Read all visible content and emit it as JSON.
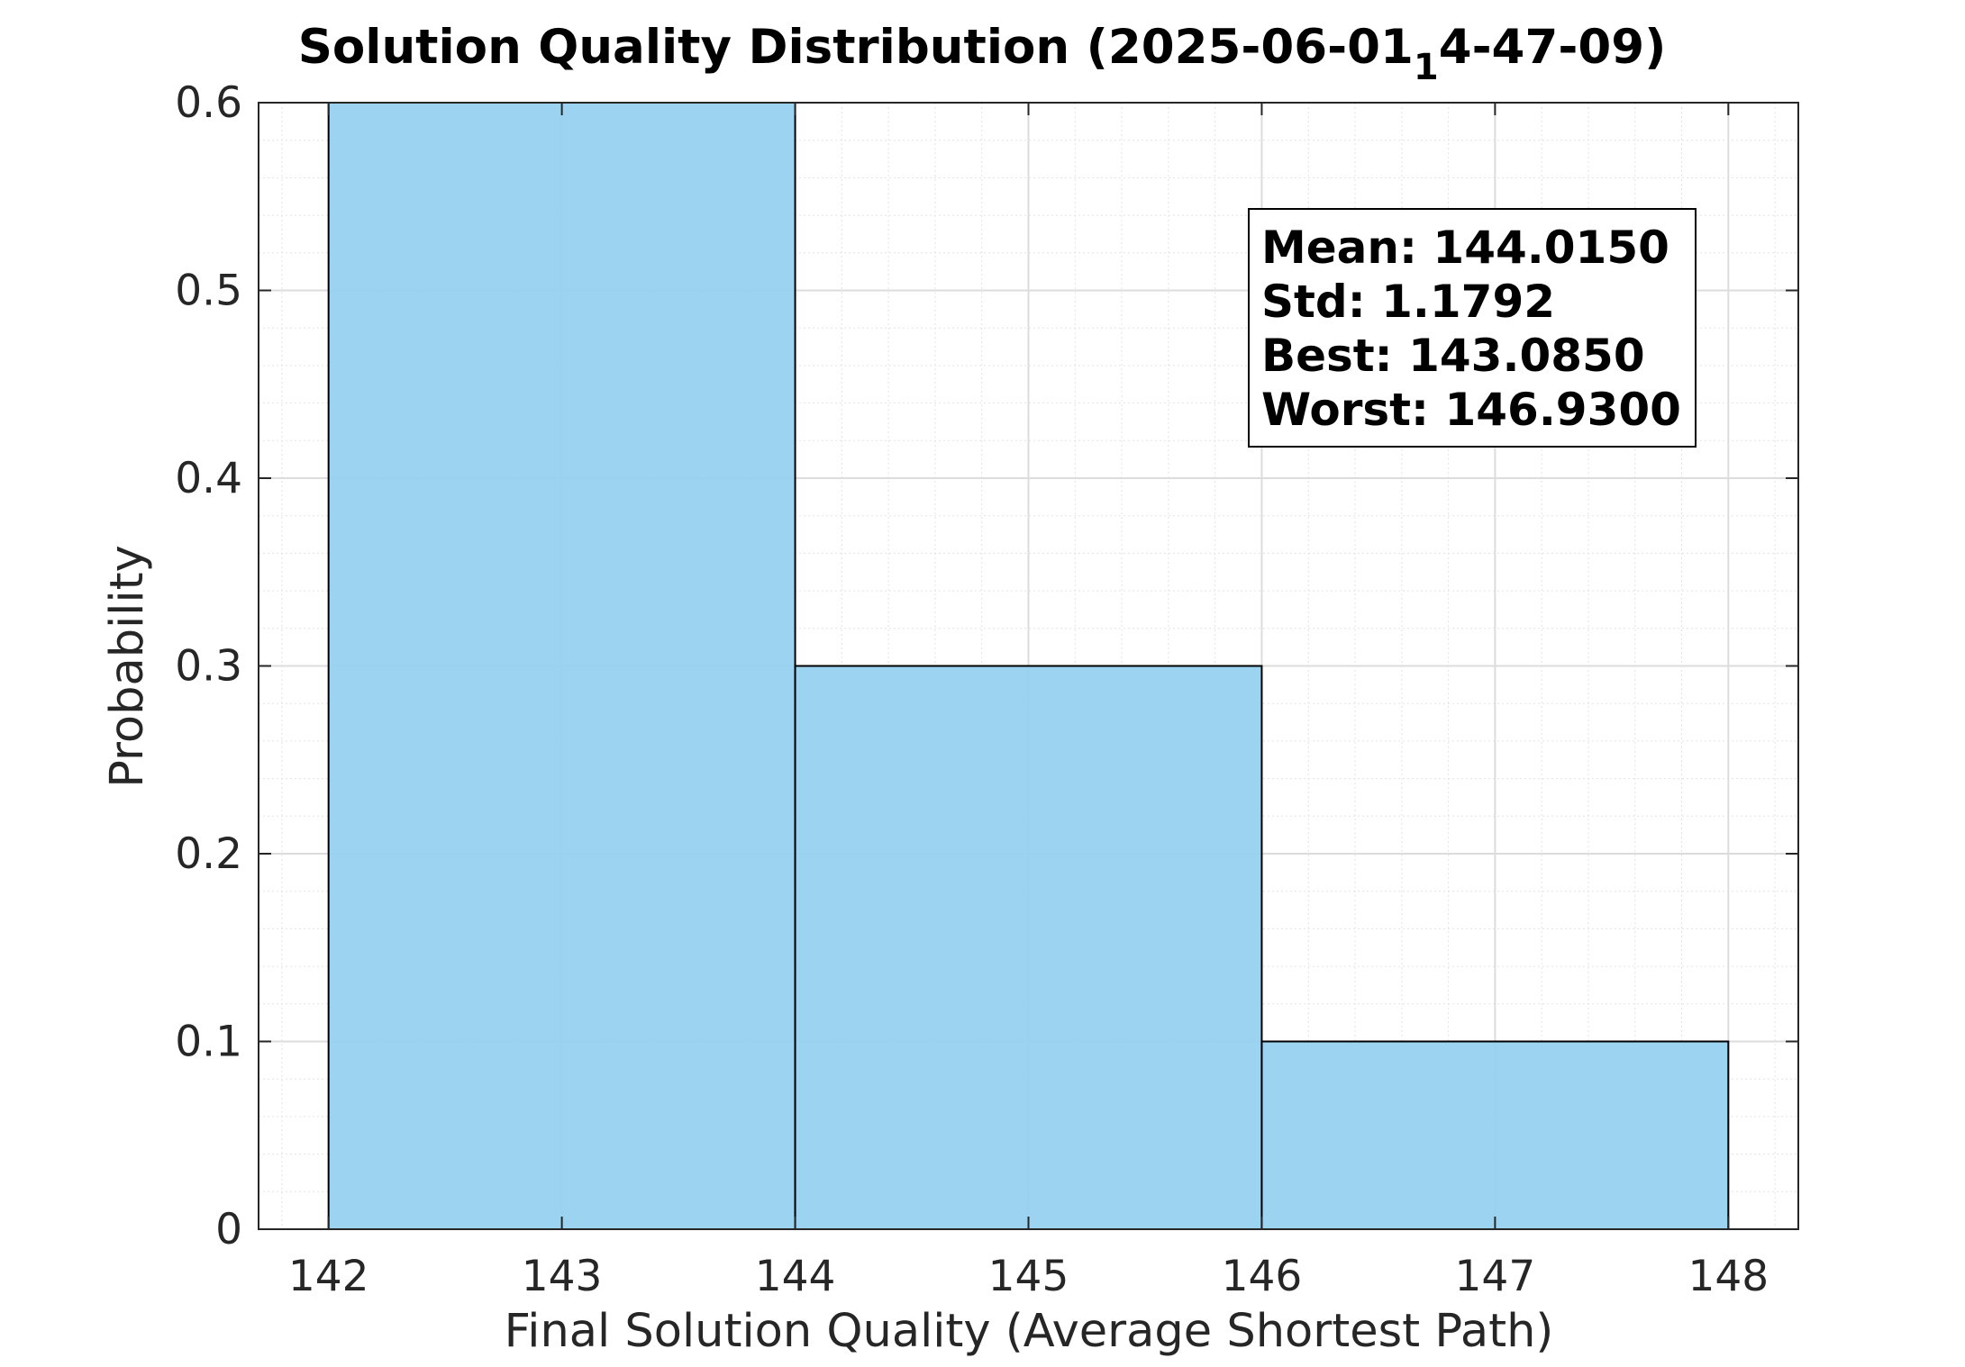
{
  "chart_data": {
    "type": "bar",
    "subtype": "histogram",
    "title": "Solution Quality Distribution (2025-06-01",
    "title_subscript": "1",
    "title_suffix": "4-47-09)",
    "xlabel": "Final Solution Quality (Average Shortest Path)",
    "ylabel": "Probability",
    "xlim": [
      141.7,
      148.3
    ],
    "ylim": [
      0,
      0.6
    ],
    "xticks": [
      "142",
      "143",
      "144",
      "145",
      "146",
      "147",
      "148"
    ],
    "yticks": [
      "0",
      "0.1",
      "0.2",
      "0.3",
      "0.4",
      "0.5",
      "0.6"
    ],
    "bins": [
      {
        "start": 142,
        "end": 144,
        "value": 0.6
      },
      {
        "start": 144,
        "end": 146,
        "value": 0.3
      },
      {
        "start": 146,
        "end": 148,
        "value": 0.1
      }
    ],
    "bar_color": "#94cff0",
    "grid": true,
    "minor_grid": true,
    "stats_box": {
      "mean": "Mean: 144.0150",
      "std": "Std: 1.1792",
      "best": "Best: 143.0850",
      "worst": "Worst: 146.9300"
    }
  }
}
